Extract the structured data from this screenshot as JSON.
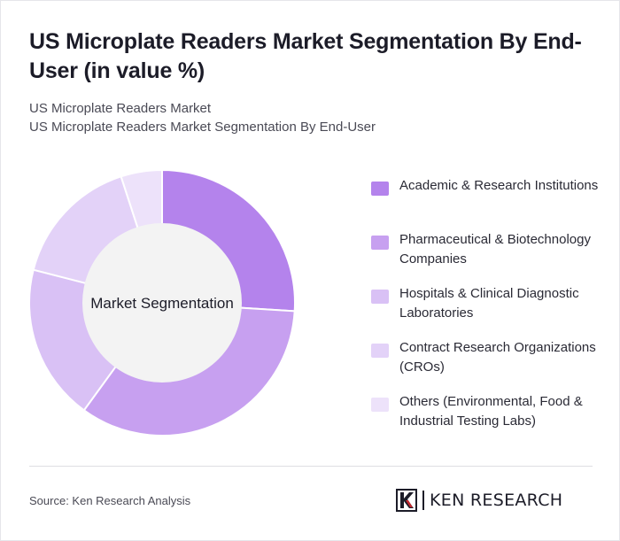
{
  "title": "US Microplate Readers Market Segmentation By End-User (in value %)",
  "subtitle_1": "US Microplate Readers Market",
  "subtitle_2": "US Microplate Readers Market Segmentation By End-User",
  "source": "Source: Ken Research Analysis",
  "logo_text": "KEN RESEARCH",
  "chart_data": {
    "type": "pie",
    "variant": "donut",
    "center_label": "Market Segmentation",
    "categories": [
      "Academic & Research Institutions",
      "Pharmaceutical & Biotechnology Companies",
      "Hospitals & Clinical Diagnostic Laboratories",
      "Contract Research Organizations (CROs)",
      "Others (Environmental, Food & Industrial Testing Labs)"
    ],
    "values": [
      26,
      34,
      19,
      16,
      5
    ],
    "colors": [
      "#b483ec",
      "#c7a0f0",
      "#d9c1f5",
      "#e3d2f8",
      "#ede2fa"
    ],
    "legend_position": "right"
  }
}
